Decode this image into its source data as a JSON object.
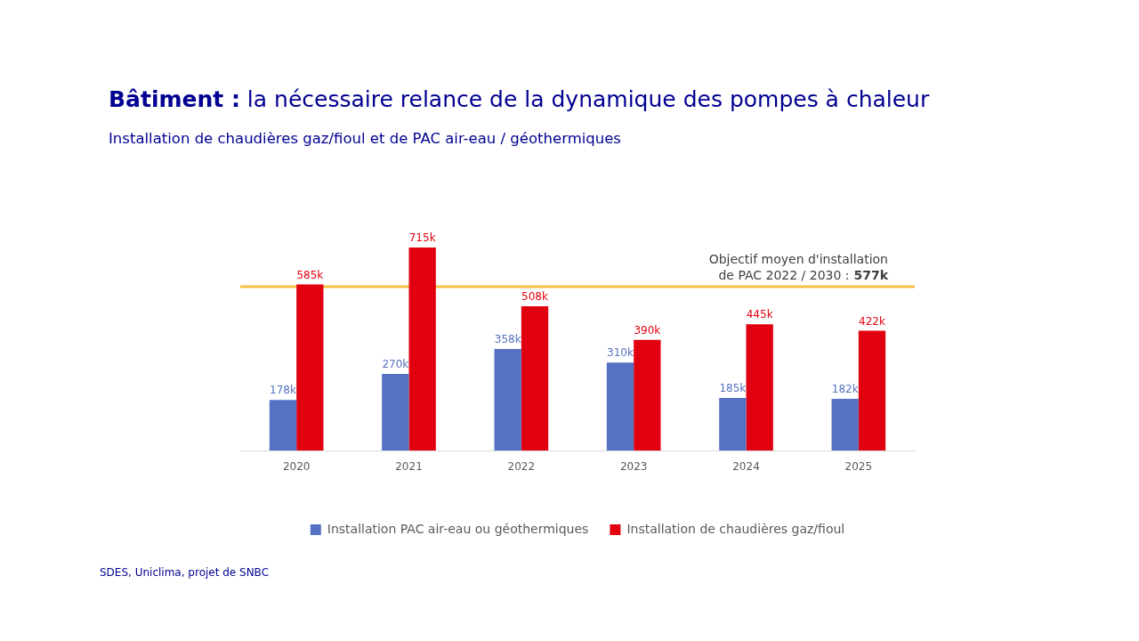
{
  "chart_data": {
    "type": "bar",
    "title": "Bâtiment : la nécessaire relance de la dynamique des pompes à chaleur",
    "subtitle": "Installation de chaudières gaz/fioul et de PAC air-eau / géothermiques",
    "categories": [
      "2020",
      "2021",
      "2022",
      "2023",
      "2024",
      "2025"
    ],
    "series": [
      {
        "name": "Installation PAC air-eau ou géothermiques",
        "color": "#5571c1",
        "values": [
          178,
          270,
          358,
          310,
          185,
          182
        ],
        "value_labels": [
          "178k",
          "270k",
          "358k",
          "310k",
          "185k",
          "182k"
        ]
      },
      {
        "name": "Installation de chaudières gaz/fioul",
        "color": "#e1000f",
        "values": [
          585,
          715,
          508,
          390,
          445,
          422
        ],
        "value_labels": [
          "585k",
          "715k",
          "508k",
          "390k",
          "445k",
          "422k"
        ]
      }
    ],
    "ref_lines": [
      {
        "axis": "y",
        "value": 577,
        "label": "Objectif moyen d'installation de PAC 2022 / 2030 : 577k",
        "color": "#f5c242"
      }
    ],
    "annotations": [
      "SDES, Uniclima, projet de SNBC"
    ],
    "legend": "bottom",
    "tick_labels": "x"
  }
}
